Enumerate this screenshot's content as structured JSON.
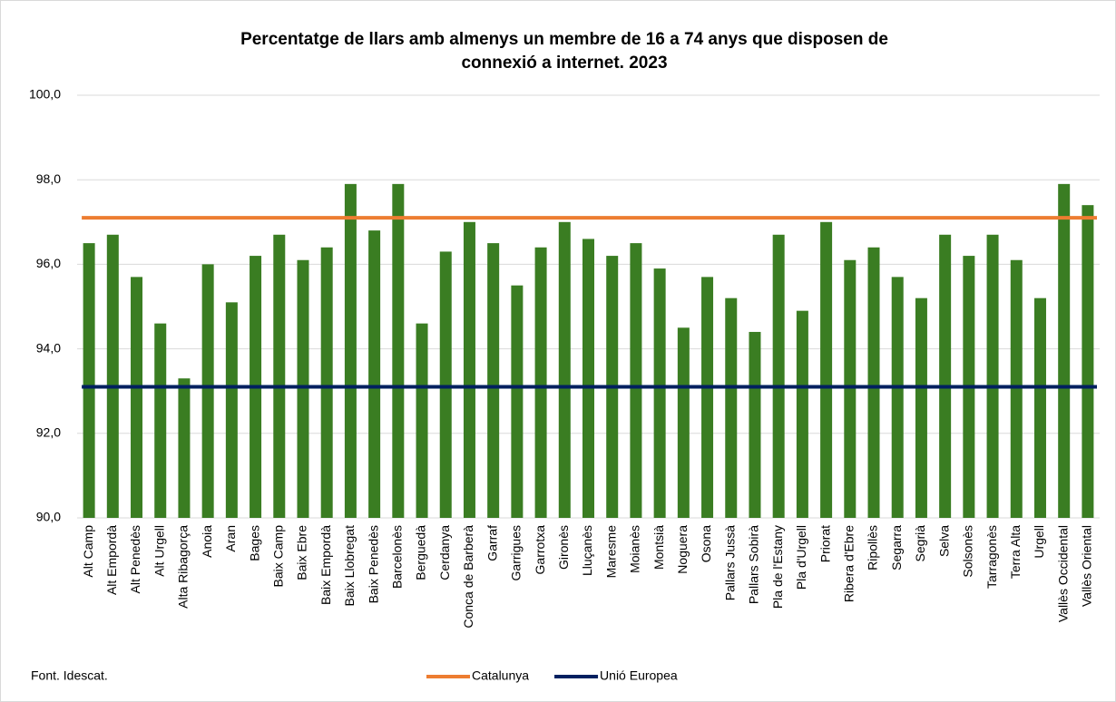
{
  "chart_data": {
    "type": "bar",
    "title": [
      "Percentatge de llars amb almenys un membre de 16 a 74 anys que disposen de",
      "connexió a internet. 2023"
    ],
    "categories": [
      "Alt Camp",
      "Alt Empordà",
      "Alt Penedès",
      "Alt Urgell",
      "Alta Ribagorça",
      "Anoia",
      "Aran",
      "Bages",
      "Baix Camp",
      "Baix Ebre",
      "Baix Empordà",
      "Baix Llobregat",
      "Baix Penedès",
      "Barcelonès",
      "Berguedà",
      "Cerdanya",
      "Conca de Barberà",
      "Garraf",
      "Garrigues",
      "Garrotxa",
      "Gironès",
      "Lluçanès",
      "Maresme",
      "Moianès",
      "Montsià",
      "Noguera",
      "Osona",
      "Pallars Jussà",
      "Pallars Sobirà",
      "Pla de l'Estany",
      "Pla d'Urgell",
      "Priorat",
      "Ribera d'Ebre",
      "Ripollès",
      "Segarra",
      "Segrià",
      "Selva",
      "Solsonès",
      "Tarragonès",
      "Terra Alta",
      "Urgell",
      "Vallès Occidental",
      "Vallès Oriental"
    ],
    "values": [
      96.5,
      96.7,
      95.7,
      94.6,
      93.3,
      96.0,
      95.1,
      96.2,
      96.7,
      96.1,
      96.4,
      97.9,
      96.8,
      97.9,
      94.6,
      96.3,
      97.0,
      96.5,
      95.5,
      96.4,
      97.0,
      96.6,
      96.2,
      96.5,
      95.9,
      94.5,
      95.7,
      95.2,
      94.4,
      96.7,
      94.9,
      97.0,
      96.1,
      96.4,
      95.7,
      95.2,
      96.7,
      96.2,
      96.7,
      96.1,
      95.2,
      97.9,
      97.4
    ],
    "color": "#3a7d22",
    "series": [
      {
        "name": "Catalunya",
        "color": "#ed7d31",
        "value": 97.1
      },
      {
        "name": "Unió Europea",
        "color": "#002060",
        "value": 93.1
      }
    ],
    "ylim": [
      90,
      100
    ],
    "yticks": [
      {
        "value": 90,
        "label": "90,0"
      },
      {
        "value": 92,
        "label": "92,0"
      },
      {
        "value": 94,
        "label": "94,0"
      },
      {
        "value": 96,
        "label": "96,0"
      },
      {
        "value": 98,
        "label": "98,0"
      },
      {
        "value": 100,
        "label": "100,0"
      }
    ],
    "grid": true,
    "source": "Font. Idescat."
  }
}
